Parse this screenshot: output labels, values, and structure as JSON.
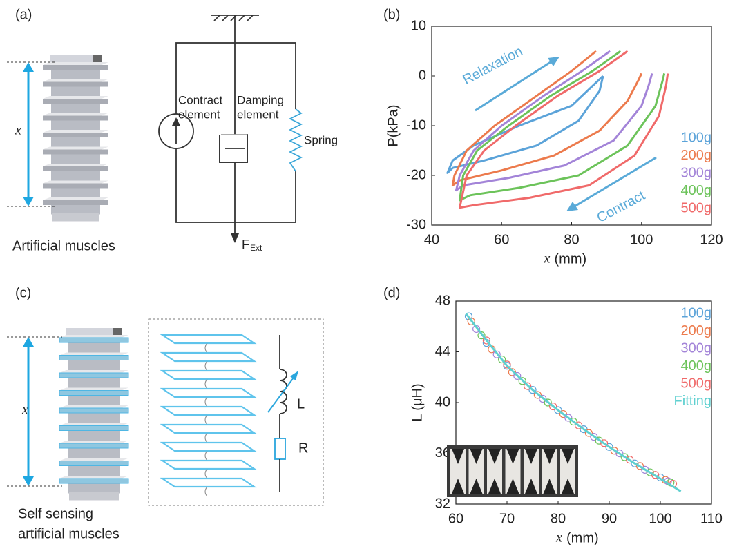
{
  "panels": {
    "a": {
      "label": "(a)",
      "x_symbol": "x",
      "caption": "Artificial muscles",
      "contract": [
        "Contract",
        "element"
      ],
      "damping": [
        "Damping",
        "element"
      ],
      "spring": "Spring",
      "force": "F",
      "force_sub": "Ext"
    },
    "b": {
      "label": "(b)"
    },
    "c": {
      "label": "(c)",
      "x_symbol": "x",
      "caption": [
        "Self sensing",
        "artificial muscles"
      ],
      "inductor": "L",
      "resistor": "R"
    },
    "d": {
      "label": "(d)"
    }
  },
  "chart_data": [
    {
      "type": "line",
      "x_label_symbol": "x",
      "x_label": "(mm)",
      "y_label": "P(kPa)",
      "xlim": [
        40,
        120
      ],
      "xticks": [
        40,
        60,
        80,
        100,
        120
      ],
      "ylim": [
        -30,
        10
      ],
      "yticks": [
        -30,
        -20,
        -10,
        0,
        10
      ],
      "annotations": [
        "Relaxation",
        "Contract"
      ],
      "series": [
        {
          "name": "100g",
          "color": "#5ba3d9",
          "x": [
            89,
            80,
            65,
            52,
            46,
            44.5,
            46,
            55,
            70,
            82,
            88,
            89
          ],
          "values": [
            0,
            -6,
            -10,
            -14,
            -17,
            -19.5,
            -18.5,
            -17,
            -14,
            -9,
            -3,
            0
          ]
        },
        {
          "name": "200g",
          "color": "#ec7a4c",
          "x": [
            87,
            80,
            70,
            58,
            50,
            46.5,
            46,
            48,
            60,
            75,
            88,
            96,
            99,
            100
          ],
          "values": [
            5,
            1,
            -4,
            -10,
            -15,
            -20,
            -22,
            -21,
            -19,
            -16,
            -11,
            -5,
            -1,
            0.5
          ]
        },
        {
          "name": "300g",
          "color": "#a384d8",
          "x": [
            91,
            83,
            72,
            60,
            52,
            48,
            47,
            49,
            62,
            78,
            92,
            100,
            102,
            103
          ],
          "values": [
            5,
            1,
            -4,
            -10,
            -15,
            -20,
            -23,
            -22,
            -20.5,
            -18,
            -13,
            -6,
            -2,
            0.5
          ]
        },
        {
          "name": "400g",
          "color": "#6cc35a",
          "x": [
            94,
            86,
            74,
            62,
            53,
            49,
            48,
            51,
            65,
            82,
            96,
            104,
            106,
            106.5
          ],
          "values": [
            5,
            1,
            -4,
            -10,
            -15,
            -20,
            -25,
            -24,
            -22.5,
            -20,
            -14,
            -6,
            -1,
            0.5
          ]
        },
        {
          "name": "500g",
          "color": "#f06a6a",
          "x": [
            96,
            88,
            76,
            64,
            55,
            50,
            48,
            52,
            68,
            85,
            98,
            105,
            107,
            107.5
          ],
          "values": [
            5,
            1,
            -4,
            -10,
            -15,
            -20,
            -26.5,
            -26,
            -24.5,
            -22,
            -16,
            -8,
            -2,
            0.5
          ]
        }
      ]
    },
    {
      "type": "scatter",
      "x_label_symbol": "x",
      "x_label": "(mm)",
      "y_label": "L (μH)",
      "xlim": [
        60,
        110
      ],
      "xticks": [
        60,
        70,
        80,
        90,
        100,
        110
      ],
      "ylim": [
        32,
        48
      ],
      "yticks": [
        32,
        36,
        40,
        44,
        48
      ],
      "series": [
        {
          "name": "100g",
          "color": "#5ba3d9",
          "x": [
            62.5,
            66,
            70,
            75,
            80,
            85,
            90,
            95,
            100
          ],
          "values": [
            46.8,
            44.7,
            42.9,
            41,
            39.4,
            37.9,
            36.5,
            35.2,
            34.1
          ]
        },
        {
          "name": "200g",
          "color": "#ec7a4c",
          "x": [
            63,
            67,
            71,
            76,
            81,
            86,
            91,
            96,
            101
          ],
          "values": [
            46.4,
            44.2,
            42.4,
            40.6,
            39.1,
            37.6,
            36.2,
            35,
            33.9
          ]
        },
        {
          "name": "300g",
          "color": "#a384d8",
          "x": [
            64,
            68,
            72,
            77,
            82,
            87,
            92,
            97,
            101.5
          ],
          "values": [
            45.8,
            43.8,
            42.1,
            40.3,
            38.8,
            37.3,
            36,
            34.7,
            33.8
          ]
        },
        {
          "name": "400g",
          "color": "#6cc35a",
          "x": [
            65,
            69,
            73,
            78,
            83,
            88,
            93,
            98,
            102
          ],
          "values": [
            45.3,
            43.4,
            41.7,
            40,
            38.5,
            37,
            35.7,
            34.5,
            33.7
          ]
        },
        {
          "name": "500g",
          "color": "#f06a6a",
          "x": [
            66,
            70,
            74,
            79,
            84,
            89,
            94,
            99,
            102.5
          ],
          "values": [
            44.9,
            43,
            41.3,
            39.7,
            38.2,
            36.8,
            35.5,
            34.3,
            33.6
          ]
        },
        {
          "name": "Fitting",
          "color": "#5fd0d0",
          "kind": "line",
          "x": [
            62,
            66,
            70,
            75,
            80,
            85,
            90,
            95,
            100,
            104
          ],
          "values": [
            47,
            44.9,
            42.9,
            41,
            39.4,
            37.9,
            36.5,
            35.2,
            34,
            33
          ]
        }
      ]
    }
  ]
}
